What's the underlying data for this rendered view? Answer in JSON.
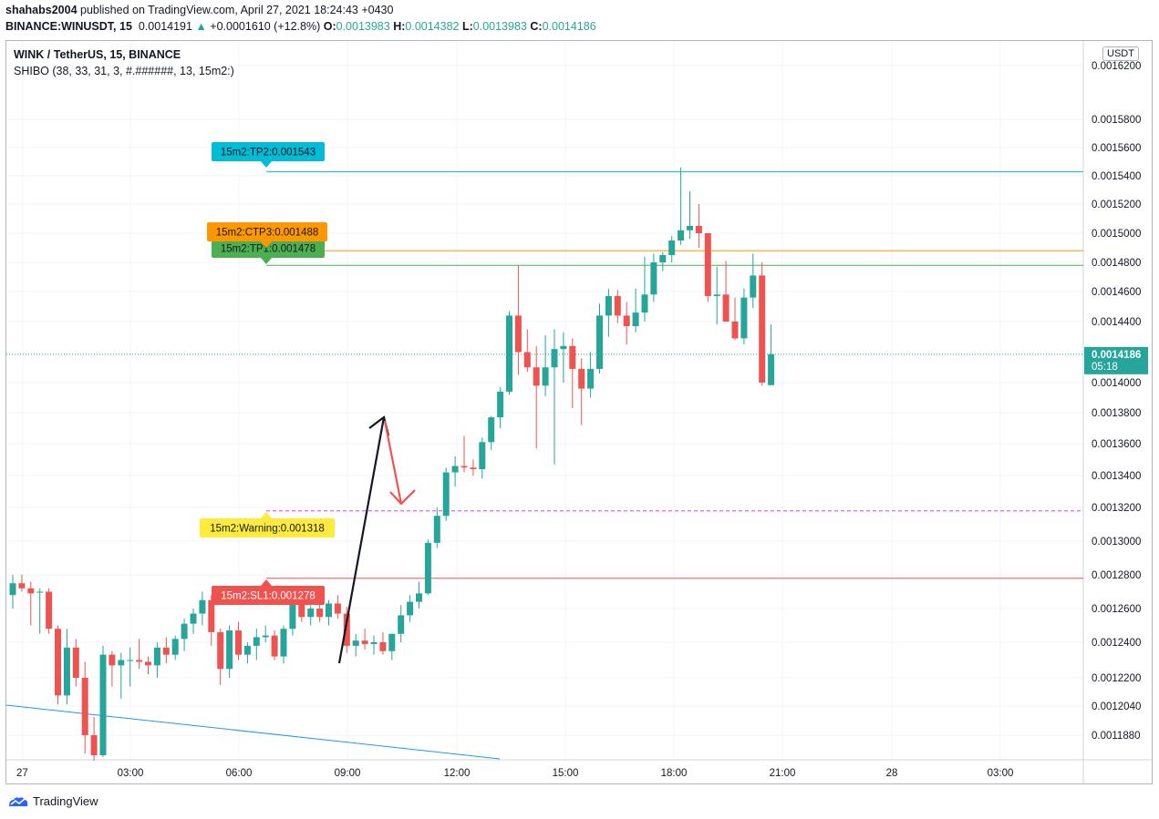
{
  "header": {
    "author": "shahabs2004",
    "published": "published on TradingView.com, April 27, 2021 18:24:43 +0430",
    "symbol_line": "BINANCE:WINUSDT, 15",
    "last": "0.0014191",
    "change": "+0.0001610 (+12.8%)",
    "o_label": "O:",
    "o": "0.0013983",
    "h_label": "H:",
    "h": "0.0014382",
    "l_label": "L:",
    "l": "0.0013983",
    "c_label": "C:",
    "c": "0.0014186"
  },
  "pane": {
    "title": "WINK / TetherUS, 15, BINANCE",
    "indicator": "SHIBO (38, 33, 31, 3, #.######, 13, 15m2:)",
    "currency": "USDT"
  },
  "footer": {
    "brand": "TradingView"
  },
  "colors": {
    "up": "#26a69a",
    "down": "#ef5350",
    "tp2": "#00bcd4",
    "ctp3": "#ff9800",
    "tp1": "#4caf50",
    "warning": "#ffeb3b",
    "sl1": "#ef5350",
    "trend": "#2196f3"
  },
  "chart_data": {
    "type": "candlestick",
    "ylim": [
      0.00117,
      0.00163
    ],
    "y_ticks": [
      "0.0016200",
      "0.0015800",
      "0.0015600",
      "0.0015400",
      "0.0015200",
      "0.0015000",
      "0.0014800",
      "0.0014600",
      "0.0014400",
      "0.0014000",
      "0.0013800",
      "0.0013600",
      "0.0013400",
      "0.0013200",
      "0.0013000",
      "0.0012800",
      "0.0012600",
      "0.0012400",
      "0.0012200",
      "0.0012040",
      "0.0011880"
    ],
    "x_ticks": [
      "27",
      "03:00",
      "06:00",
      "09:00",
      "12:00",
      "15:00",
      "18:00",
      "21:00",
      "28",
      "03:00"
    ],
    "last_price": {
      "value": "0.0014186",
      "countdown": "05:18"
    },
    "levels": [
      {
        "name": "15m2:TP2",
        "value": 0.001543,
        "label": "15m2:TP2:0.001543",
        "color": "#00bcd4",
        "dashed": false
      },
      {
        "name": "15m2:CTP3",
        "value": 0.001488,
        "label": "15m2:CTP3:0.001488",
        "color": "#ff9800",
        "dashed": false
      },
      {
        "name": "15m2:TP1",
        "value": 0.001478,
        "label": "15m2:TP1:0.001478",
        "color": "#4caf50",
        "dashed": false
      },
      {
        "name": "15m2:Warning",
        "value": 0.001318,
        "label": "15m2:Warning:0.001318",
        "color": "#ffeb3b",
        "dashed": true
      },
      {
        "name": "15m2:SL1",
        "value": 0.001278,
        "label": "15m2:SL1:0.001278",
        "color": "#ef5350",
        "dashed": false
      }
    ],
    "candles": [
      [
        0.001268,
        0.00128,
        0.00126,
        0.001275
      ],
      [
        0.001275,
        0.00128,
        0.00127,
        0.001272
      ],
      [
        0.001272,
        0.001276,
        0.00125,
        0.001269
      ],
      [
        0.00127,
        0.001272,
        0.001245,
        0.00127
      ],
      [
        0.00127,
        0.001272,
        0.001245,
        0.001248
      ],
      [
        0.001248,
        0.00125,
        0.001205,
        0.00121
      ],
      [
        0.00121,
        0.001248,
        0.001205,
        0.001237
      ],
      [
        0.001237,
        0.001242,
        0.001215,
        0.00122
      ],
      [
        0.00122,
        0.001229,
        0.001178,
        0.001188
      ],
      [
        0.001188,
        0.001198,
        0.001174,
        0.001177
      ],
      [
        0.001177,
        0.001238,
        0.001176,
        0.001233
      ],
      [
        0.001233,
        0.001235,
        0.001215,
        0.001227
      ],
      [
        0.001227,
        0.001234,
        0.001208,
        0.00123
      ],
      [
        0.00123,
        0.001237,
        0.001215,
        0.00123
      ],
      [
        0.00123,
        0.001242,
        0.001225,
        0.001229
      ],
      [
        0.001229,
        0.001232,
        0.001222,
        0.001227
      ],
      [
        0.001227,
        0.00124,
        0.00122,
        0.001237
      ],
      [
        0.001237,
        0.001243,
        0.001228,
        0.001233
      ],
      [
        0.001233,
        0.001244,
        0.00123,
        0.001242
      ],
      [
        0.001242,
        0.001254,
        0.001235,
        0.001251
      ],
      [
        0.001251,
        0.00126,
        0.001245,
        0.001257
      ],
      [
        0.001257,
        0.00127,
        0.00125,
        0.001265
      ],
      [
        0.001265,
        0.001268,
        0.001238,
        0.001246
      ],
      [
        0.001246,
        0.001248,
        0.001216,
        0.001225
      ],
      [
        0.001225,
        0.00125,
        0.00122,
        0.001247
      ],
      [
        0.001247,
        0.001252,
        0.00123,
        0.001233
      ],
      [
        0.001233,
        0.00124,
        0.001228,
        0.001238
      ],
      [
        0.001238,
        0.001248,
        0.00123,
        0.001243
      ],
      [
        0.001243,
        0.00125,
        0.00124,
        0.001244
      ],
      [
        0.001244,
        0.001247,
        0.00123,
        0.001232
      ],
      [
        0.001232,
        0.00125,
        0.001228,
        0.001248
      ],
      [
        0.001248,
        0.00127,
        0.001244,
        0.001264
      ],
      [
        0.001264,
        0.00127,
        0.001252,
        0.001255
      ],
      [
        0.001255,
        0.001262,
        0.00125,
        0.00126
      ],
      [
        0.00126,
        0.001268,
        0.001252,
        0.001255
      ],
      [
        0.001255,
        0.001265,
        0.00125,
        0.001263
      ],
      [
        0.001263,
        0.001268,
        0.001254,
        0.001257
      ],
      [
        0.001257,
        0.001261,
        0.001234,
        0.001238
      ],
      [
        0.001238,
        0.001245,
        0.001232,
        0.001241
      ],
      [
        0.001241,
        0.001248,
        0.001236,
        0.001239
      ],
      [
        0.001239,
        0.001244,
        0.001233,
        0.00124
      ],
      [
        0.00124,
        0.001246,
        0.001233,
        0.001235
      ],
      [
        0.001235,
        0.001245,
        0.00123,
        0.001245
      ],
      [
        0.001245,
        0.001262,
        0.00124,
        0.001256
      ],
      [
        0.001256,
        0.001268,
        0.001252,
        0.001264
      ],
      [
        0.001264,
        0.001276,
        0.00126,
        0.001269
      ],
      [
        0.001269,
        0.001301,
        0.001268,
        0.001299
      ],
      [
        0.001299,
        0.00132,
        0.001296,
        0.001315
      ],
      [
        0.001315,
        0.001345,
        0.001312,
        0.001342
      ],
      [
        0.001342,
        0.001352,
        0.001333,
        0.001346
      ],
      [
        0.001346,
        0.001365,
        0.001342,
        0.001345
      ],
      [
        0.001345,
        0.00135,
        0.00134,
        0.001344
      ],
      [
        0.001344,
        0.001364,
        0.001338,
        0.001361
      ],
      [
        0.001361,
        0.001378,
        0.001356,
        0.001377
      ],
      [
        0.001377,
        0.001397,
        0.00137,
        0.001394
      ],
      [
        0.001394,
        0.001447,
        0.001392,
        0.001444
      ],
      [
        0.001444,
        0.001478,
        0.001405,
        0.00142
      ],
      [
        0.00142,
        0.001435,
        0.001407,
        0.00141
      ],
      [
        0.00141,
        0.001424,
        0.001357,
        0.001398
      ],
      [
        0.001398,
        0.001431,
        0.001391,
        0.00141
      ],
      [
        0.00141,
        0.001435,
        0.001347,
        0.001422
      ],
      [
        0.001422,
        0.001433,
        0.0014,
        0.001424
      ],
      [
        0.001424,
        0.001429,
        0.001383,
        0.001409
      ],
      [
        0.001409,
        0.001416,
        0.001372,
        0.001396
      ],
      [
        0.001396,
        0.00142,
        0.00139,
        0.001409
      ],
      [
        0.001409,
        0.001452,
        0.001406,
        0.001444
      ],
      [
        0.001444,
        0.001462,
        0.00143,
        0.001457
      ],
      [
        0.001457,
        0.001461,
        0.001439,
        0.001444
      ],
      [
        0.001444,
        0.001453,
        0.001425,
        0.001437
      ],
      [
        0.001437,
        0.001462,
        0.001433,
        0.001446
      ],
      [
        0.001446,
        0.001484,
        0.00144,
        0.001458
      ],
      [
        0.001458,
        0.001486,
        0.001453,
        0.00148
      ],
      [
        0.00148,
        0.001487,
        0.001474,
        0.001485
      ],
      [
        0.001485,
        0.001498,
        0.00148,
        0.001495
      ],
      [
        0.001495,
        0.001546,
        0.001492,
        0.001502
      ],
      [
        0.001502,
        0.001529,
        0.001496,
        0.001505
      ],
      [
        0.001505,
        0.00152,
        0.00149,
        0.0015
      ],
      [
        0.0015,
        0.0015,
        0.001453,
        0.001457
      ],
      [
        0.001457,
        0.001477,
        0.001438,
        0.001458
      ],
      [
        0.001458,
        0.001481,
        0.001441,
        0.00144
      ],
      [
        0.00144,
        0.001456,
        0.001428,
        0.001429
      ],
      [
        0.001429,
        0.001462,
        0.001425,
        0.001456
      ],
      [
        0.001456,
        0.001486,
        0.001449,
        0.001471
      ],
      [
        0.001471,
        0.00148,
        0.001398,
        0.0014
      ],
      [
        0.0013983,
        0.0014382,
        0.0013983,
        0.0014186
      ]
    ],
    "drawings": [
      {
        "type": "trendline",
        "color": "#2196f3"
      },
      {
        "type": "arrow",
        "color": "#131722"
      },
      {
        "type": "arrow",
        "color": "#ef5350"
      }
    ]
  }
}
